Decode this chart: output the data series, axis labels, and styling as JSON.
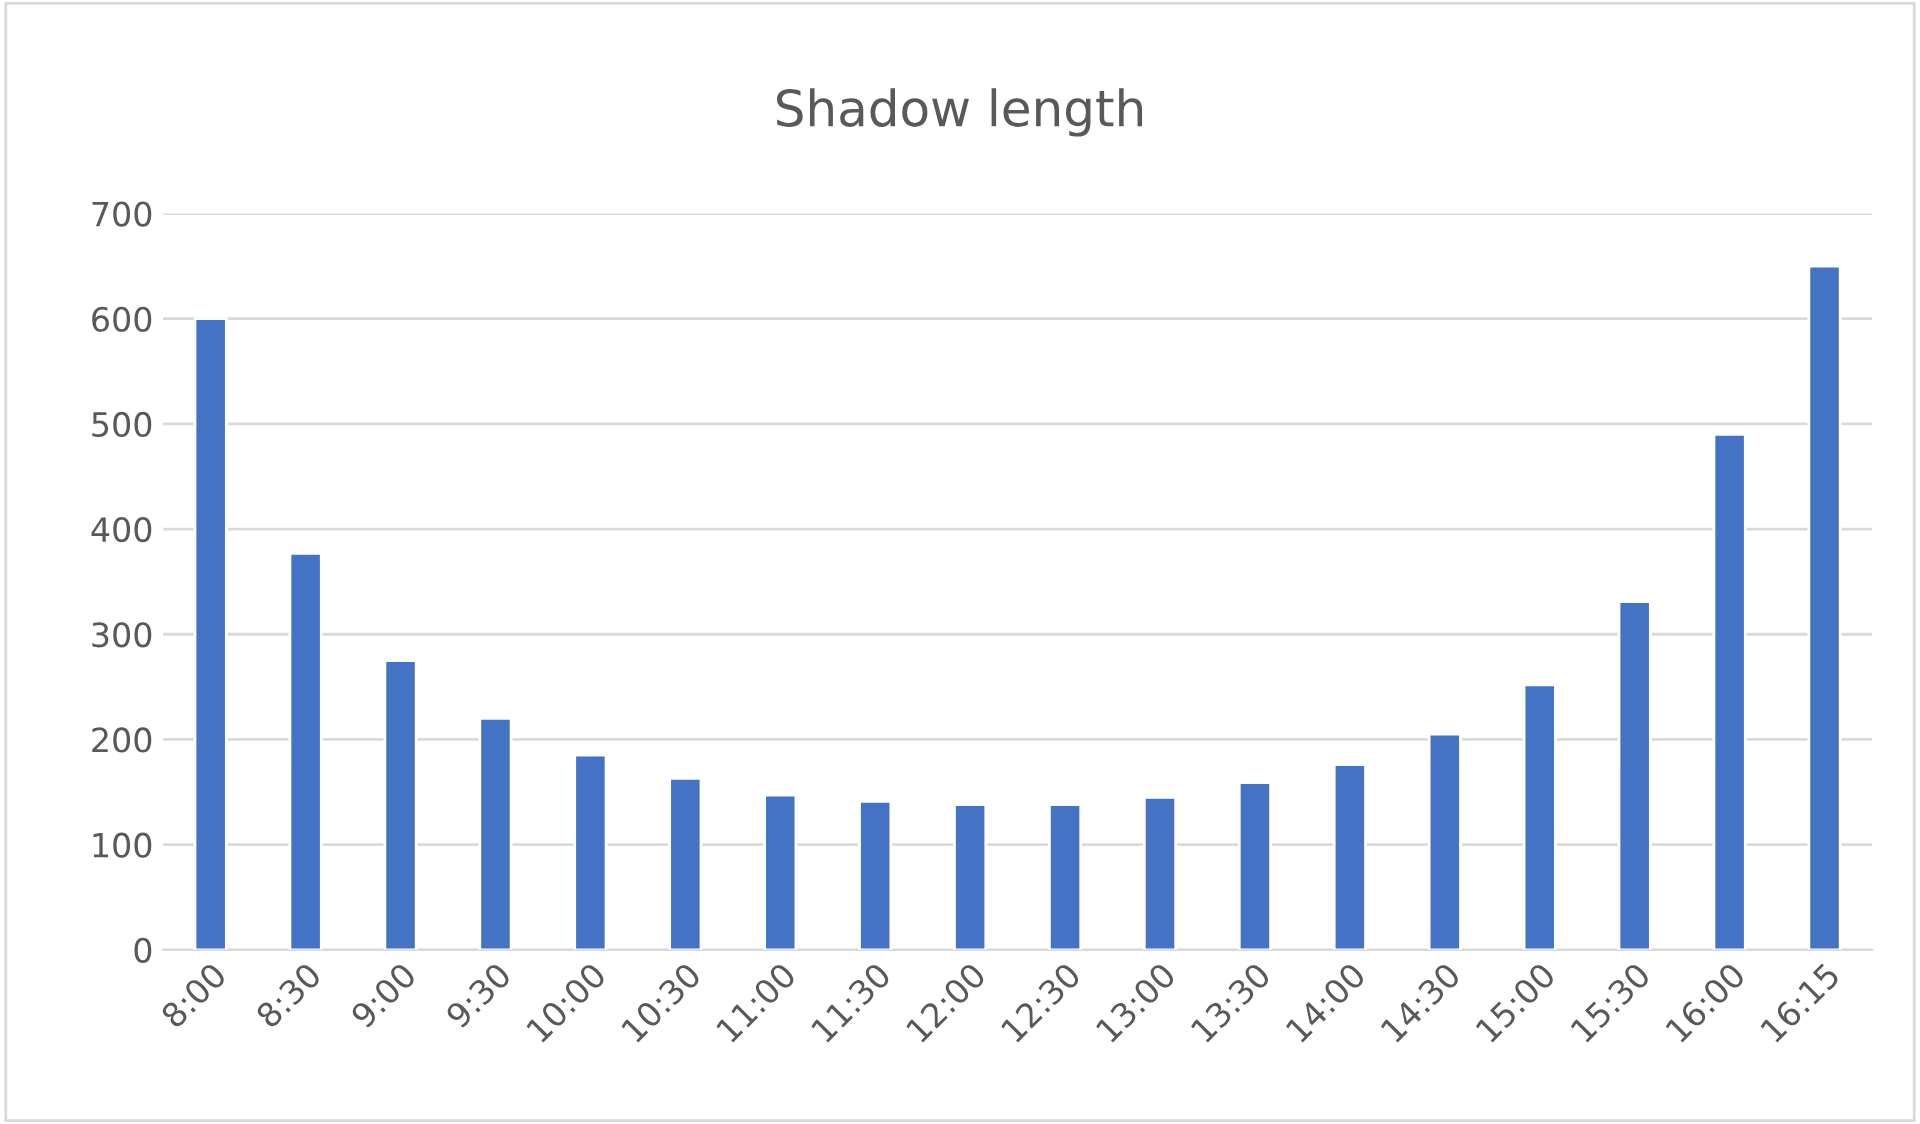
{
  "chart_data": {
    "type": "bar",
    "title": "Shadow length",
    "categories": [
      "8:00",
      "8:30",
      "9:00",
      "9:30",
      "10:00",
      "10:30",
      "11:00",
      "11:30",
      "12:00",
      "12:30",
      "13:00",
      "13:30",
      "14:00",
      "14:30",
      "15:00",
      "15:30",
      "16:00",
      "16:15"
    ],
    "values": [
      600,
      377,
      275,
      220,
      185,
      163,
      147,
      141,
      138,
      138,
      145,
      159,
      176,
      205,
      252,
      331,
      490,
      650
    ],
    "color": "#4472c4",
    "ylim": [
      0,
      700
    ],
    "yticks": [
      0,
      100,
      200,
      300,
      400,
      500,
      600,
      700
    ],
    "grid": "y"
  }
}
